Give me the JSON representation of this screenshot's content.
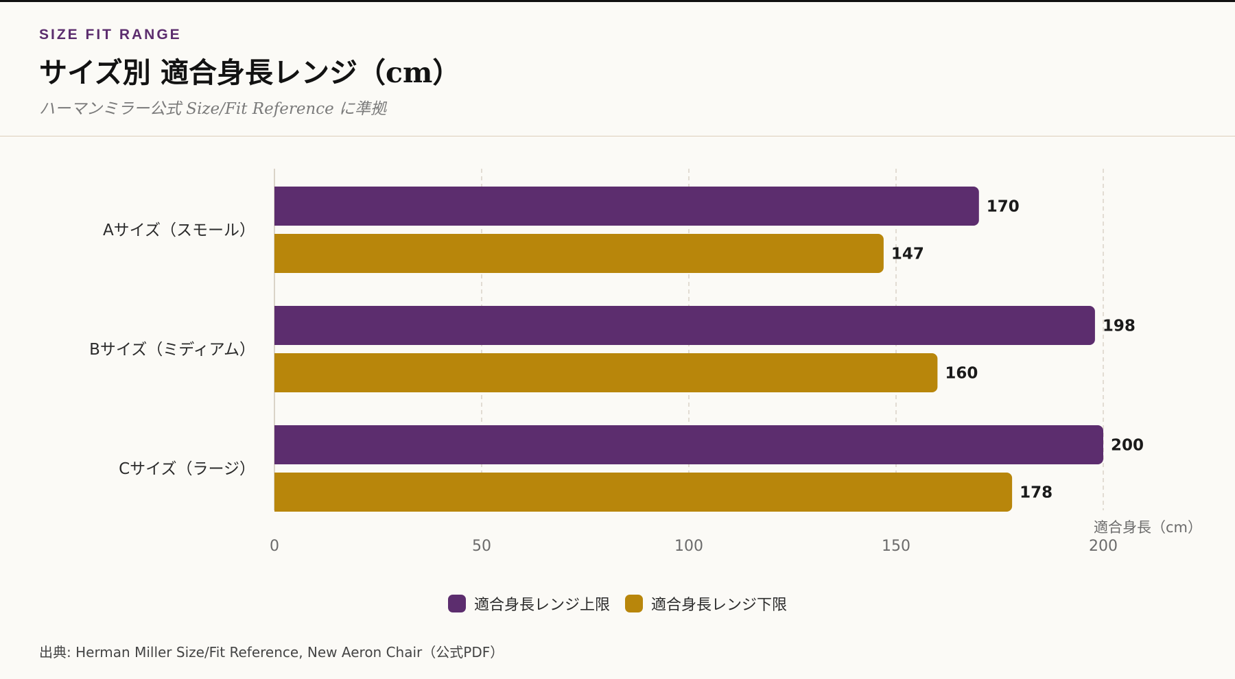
{
  "header": {
    "eyebrow": "SIZE FIT RANGE",
    "title": "サイズ別 適合身長レンジ（cm）",
    "subtitle": "ハーマンミラー公式 Size/Fit Reference に準拠"
  },
  "colors": {
    "background": "#fbfaf6",
    "upper": "#5c2d6e",
    "lower": "#b8860b",
    "grid": "#d9d2c7",
    "axis_text": "#6b6b6b"
  },
  "chart_data": {
    "type": "bar",
    "orientation": "horizontal",
    "categories": [
      "Aサイズ（スモール）",
      "Bサイズ（ミディアム）",
      "Cサイズ（ラージ）"
    ],
    "series": [
      {
        "name": "適合身長レンジ上限",
        "color": "#5c2d6e",
        "values": [
          170,
          198,
          200
        ]
      },
      {
        "name": "適合身長レンジ下限",
        "color": "#b8860b",
        "values": [
          147,
          160,
          178
        ]
      }
    ],
    "xlabel": "適合身長（cm）",
    "xlim": [
      0,
      200
    ],
    "xticks": [
      0,
      50,
      100,
      150,
      200
    ],
    "grid": "vertical dashed",
    "data_labels": true,
    "legend_position": "bottom-center"
  },
  "footer": {
    "source": "出典: Herman Miller Size/Fit Reference, New Aeron Chair（公式PDF）"
  }
}
